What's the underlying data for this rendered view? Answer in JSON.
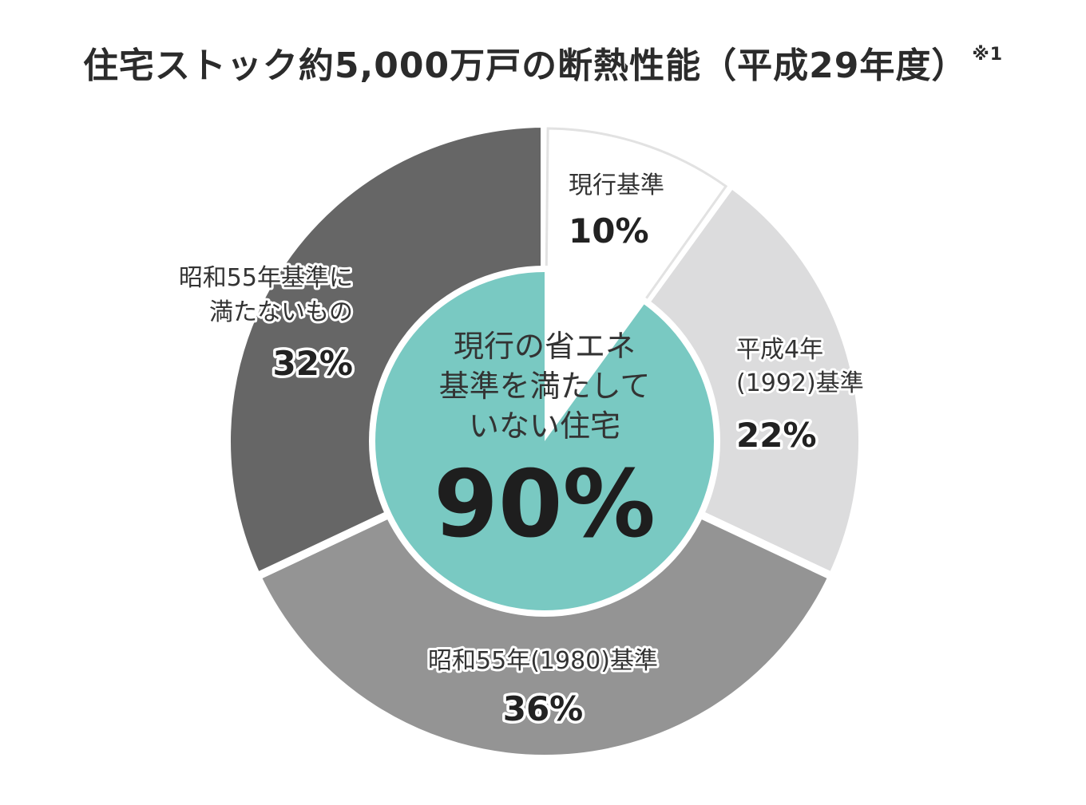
{
  "title": "住宅ストック約5,000万戸の断熱性能（平成29年度）",
  "title_note": "※1",
  "chart_data": {
    "type": "pie",
    "style": "donut",
    "start": "top",
    "direction": "clockwise",
    "unit": "%",
    "slices": [
      {
        "label": [
          "現行基準"
        ],
        "value": 10,
        "display": "10%",
        "color": "#ffffff"
      },
      {
        "label": [
          "平成4年",
          "(1992)基準"
        ],
        "value": 22,
        "display": "22%",
        "color": "#dcdcdd"
      },
      {
        "label": [
          "昭和55年(1980)基準"
        ],
        "value": 36,
        "display": "36%",
        "color": "#949494"
      },
      {
        "label": [
          "昭和55年基準に",
          "満たないもの"
        ],
        "value": 32,
        "display": "32%",
        "color": "#666666"
      }
    ],
    "center": {
      "lines": [
        "現行の省エネ",
        "基準を満たして",
        "いない住宅"
      ],
      "value": "90%",
      "color": "#79c9c2"
    }
  }
}
